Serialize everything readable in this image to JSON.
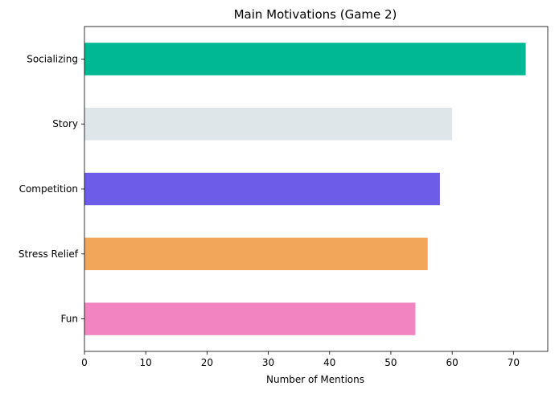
{
  "chart_data": {
    "type": "bar",
    "orientation": "horizontal",
    "title": "Main Motivations (Game 2)",
    "xlabel": "Number of Mentions",
    "ylabel": "",
    "categories": [
      "Fun",
      "Stress Relief",
      "Competition",
      "Story",
      "Socializing"
    ],
    "values": [
      54,
      56,
      58,
      60,
      72
    ],
    "colors": [
      "#f285c1",
      "#f2a65a",
      "#6c5ce7",
      "#dfe6e9",
      "#00b894"
    ],
    "xlim": [
      0,
      75.6
    ],
    "xticks": [
      0,
      10,
      20,
      30,
      40,
      50,
      60,
      70
    ],
    "grid": false,
    "legend": "none"
  }
}
